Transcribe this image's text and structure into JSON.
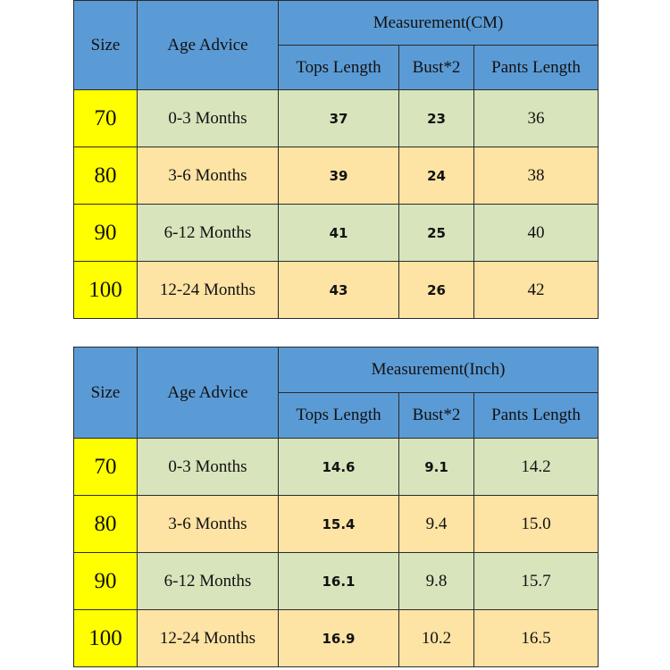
{
  "tables": [
    {
      "headers": {
        "size": "Size",
        "age": "Age Advice",
        "measurement": "Measurement(CM)",
        "tops": "Tops Length",
        "bust": "Bust*2",
        "pants": "Pants Length"
      },
      "rows": [
        {
          "size": "70",
          "age": "0-3 Months",
          "tops": "37",
          "bust": "23",
          "pants": "36"
        },
        {
          "size": "80",
          "age": "3-6 Months",
          "tops": "39",
          "bust": "24",
          "pants": "38"
        },
        {
          "size": "90",
          "age": "6-12 Months",
          "tops": "41",
          "bust": "25",
          "pants": "40"
        },
        {
          "size": "100",
          "age": "12-24 Months",
          "tops": "43",
          "bust": "26",
          "pants": "42"
        }
      ]
    },
    {
      "headers": {
        "size": "Size",
        "age": "Age Advice",
        "measurement": "Measurement(Inch)",
        "tops": "Tops Length",
        "bust": "Bust*2",
        "pants": "Pants Length"
      },
      "rows": [
        {
          "size": "70",
          "age": "0-3 Months",
          "tops": "14.6",
          "bust": "9.1",
          "pants": "14.2"
        },
        {
          "size": "80",
          "age": "3-6 Months",
          "tops": "15.4",
          "bust": "9.4",
          "pants": "15.0"
        },
        {
          "size": "90",
          "age": "6-12 Months",
          "tops": "16.1",
          "bust": "9.8",
          "pants": "15.7"
        },
        {
          "size": "100",
          "age": "12-24 Months",
          "tops": "16.9",
          "bust": "10.2",
          "pants": "16.5"
        }
      ]
    }
  ],
  "colors": {
    "header": "#5b9bd5",
    "size_cell": "#ffff00",
    "row_green": "#d8e4bc",
    "row_orange": "#fde3a4"
  }
}
